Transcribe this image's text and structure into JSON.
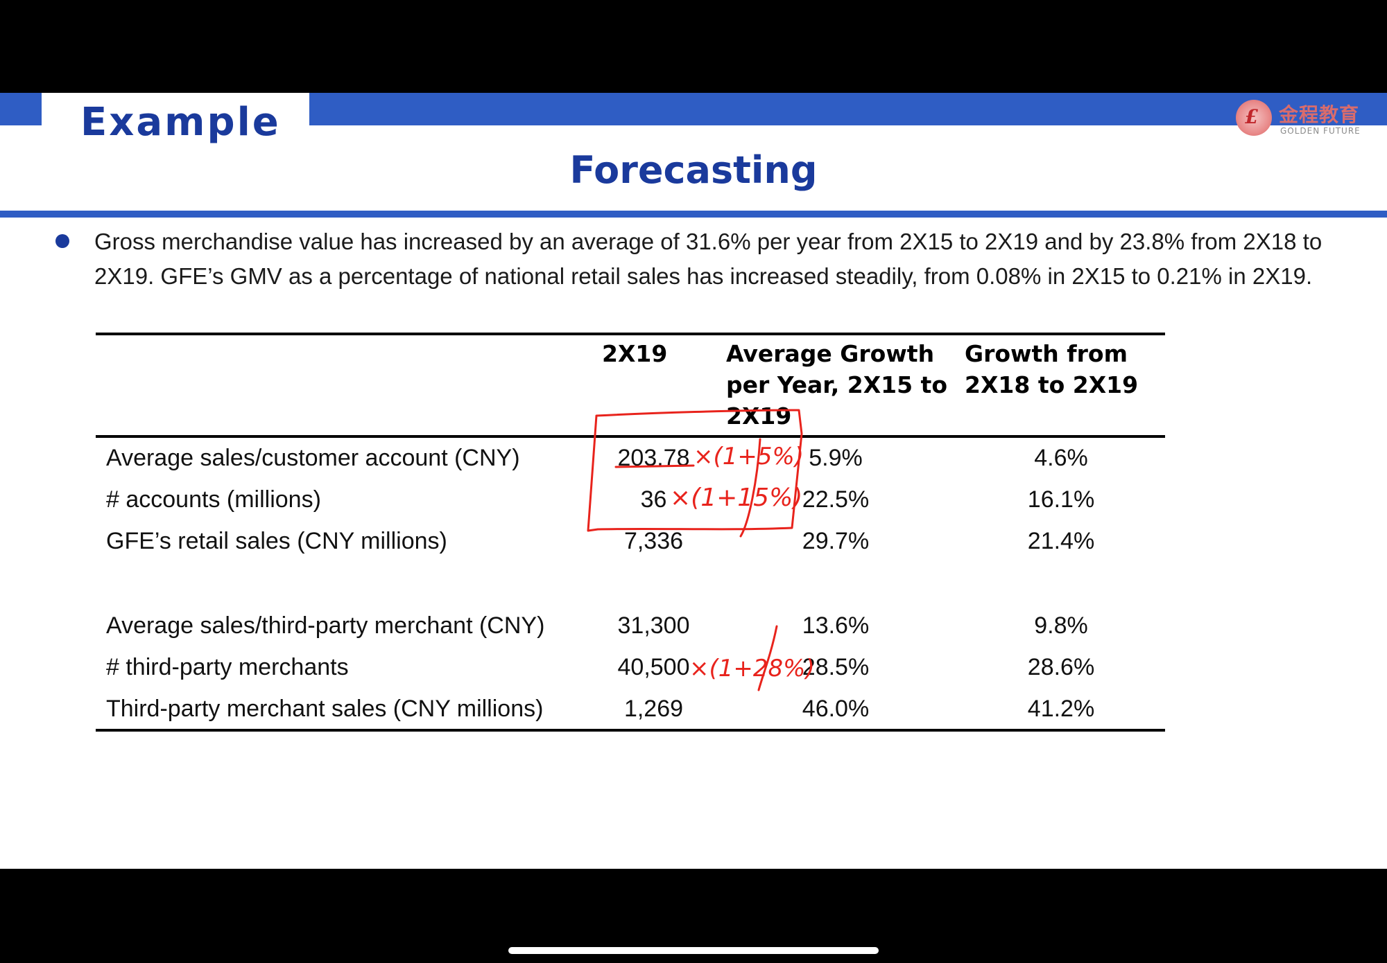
{
  "header": {
    "section_title": "Example",
    "logo_cn": "金程教育",
    "logo_en": "GOLDEN FUTURE",
    "slide_title": "Forecasting"
  },
  "bullet_text": "Gross merchandise value has increased by an average of 31.6% per year from 2X15 to 2X19 and by 23.8% from 2X18 to 2X19. GFE’s GMV as a percentage of national retail sales has increased steadily, from 0.08% in 2X15 to 0.21% in 2X19.",
  "table": {
    "columns": [
      "",
      "2X19",
      "Average Growth per Year, 2X15 to 2X19",
      "Growth from 2X18 to 2X19"
    ],
    "rows": [
      {
        "label": "Average sales/customer account (CNY)",
        "v2x19": "203.78",
        "avg_growth": "5.9%",
        "growth": "4.6%"
      },
      {
        "label": "# accounts (millions)",
        "v2x19": "36",
        "avg_growth": "22.5%",
        "growth": "16.1%"
      },
      {
        "label": "GFE’s retail sales (CNY millions)",
        "v2x19": "7,336",
        "avg_growth": "29.7%",
        "growth": "21.4%"
      },
      {
        "label": "Average sales/third-party merchant (CNY)",
        "v2x19": "31,300",
        "avg_growth": "13.6%",
        "growth": "9.8%"
      },
      {
        "label": "# third-party merchants",
        "v2x19": "40,500",
        "avg_growth": "28.5%",
        "growth": "28.6%"
      },
      {
        "label": "Third-party merchant sales (CNY millions)",
        "v2x19": "1,269",
        "avg_growth": "46.0%",
        "growth": "41.2%"
      }
    ]
  },
  "annotations": {
    "ink_color": "#e8231c",
    "note_row1": "×(1+5%)",
    "note_row2": "×(1+15%)",
    "note_row5": "×(1+28%)"
  }
}
